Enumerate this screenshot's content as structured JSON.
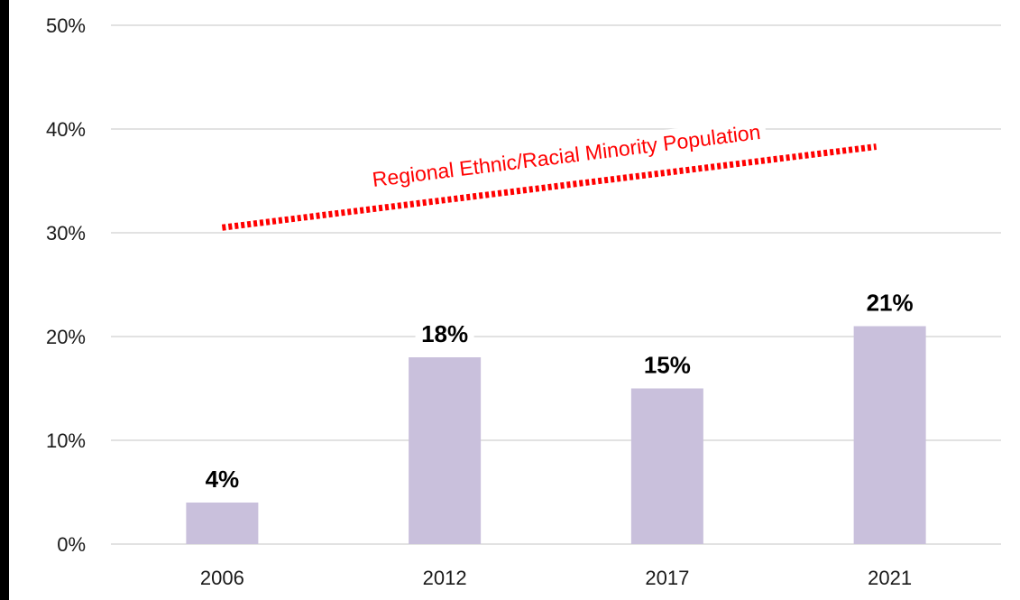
{
  "chart_data": {
    "type": "bar",
    "categories": [
      "2006",
      "2012",
      "2017",
      "2021"
    ],
    "values": [
      4,
      18,
      15,
      21
    ],
    "data_labels": [
      "4%",
      "18%",
      "15%",
      "21%"
    ],
    "ylim": [
      0,
      50
    ],
    "yticks": [
      0,
      10,
      20,
      30,
      40,
      50
    ],
    "ytick_labels": [
      "0%",
      "10%",
      "20%",
      "30%",
      "40%",
      "50%"
    ],
    "grid": true,
    "colors": {
      "bar": "#c9c0dc",
      "grid": "#d9d9d9",
      "trend": "#ff0000"
    },
    "trend_line": {
      "label": "Regional Ethnic/Racial Minority Population",
      "style": "dotted",
      "from": {
        "x": "2006",
        "y": 30.5
      },
      "to": {
        "x": "2021",
        "y": 38.3
      }
    }
  }
}
